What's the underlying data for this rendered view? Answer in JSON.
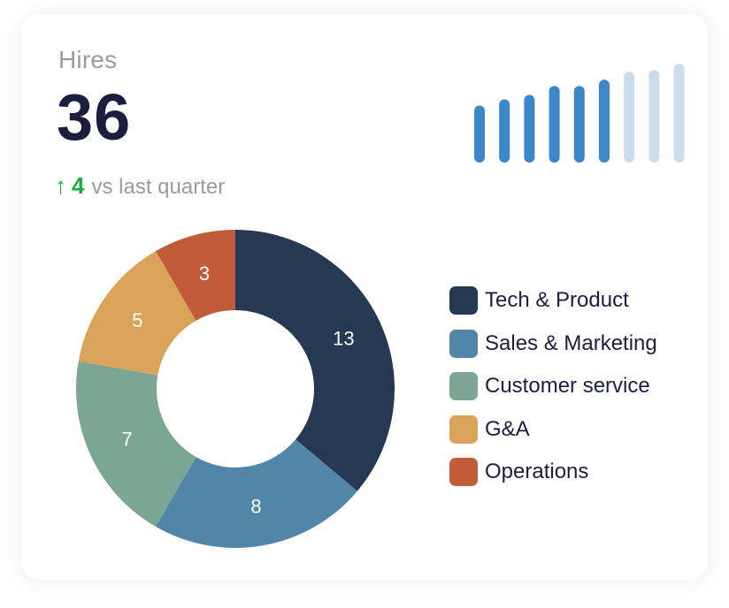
{
  "kpi": {
    "title": "Hires",
    "value": "36",
    "delta_arrow": "↑",
    "delta_value": "4",
    "delta_label": "vs last quarter"
  },
  "colors": {
    "delta_up": "#1aaf3a",
    "trend_active": "#3b87c9",
    "trend_future": "#c9ddef"
  },
  "trend": {
    "type": "bar",
    "values": [
      64,
      71,
      76,
      86,
      86,
      93,
      102,
      104,
      111
    ],
    "active_count": 6
  },
  "chart_data": {
    "type": "pie",
    "style": "donut",
    "categories": [
      "Tech & Product",
      "Sales & Marketing",
      "Customer service",
      "G&A",
      "Operations"
    ],
    "values": [
      13,
      8,
      7,
      5,
      3
    ],
    "colors": [
      "#253a52",
      "#5186a9",
      "#7ba594",
      "#dba25a",
      "#c05c3a"
    ],
    "data_labels": [
      "13",
      "8",
      "7",
      "5",
      "3"
    ],
    "legend": "right"
  }
}
